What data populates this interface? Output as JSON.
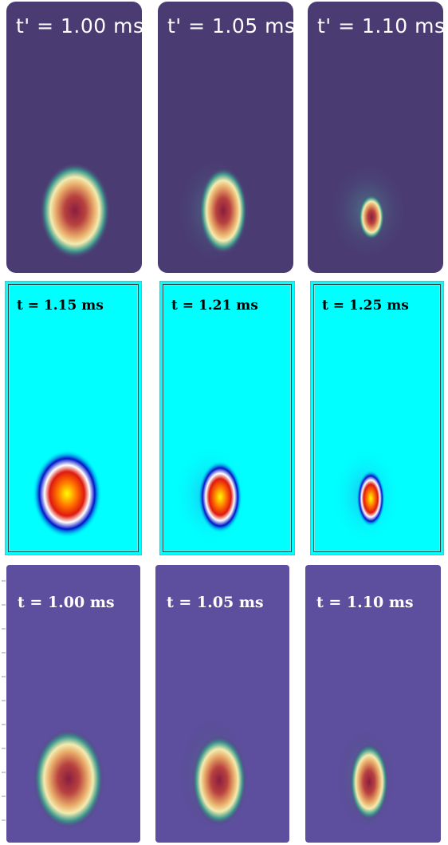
{
  "rows": [
    {
      "panels": [
        {
          "label": "t' = 1.00 ms"
        },
        {
          "label": "t' = 1.05 ms"
        },
        {
          "label": "t' = 1.10 ms"
        }
      ]
    },
    {
      "panels": [
        {
          "label": "t = 1.15 ms"
        },
        {
          "label": "t = 1.21 ms"
        },
        {
          "label": "t = 1.25 ms"
        }
      ]
    },
    {
      "panels": [
        {
          "label": "t = 1.00 ms"
        },
        {
          "label": "t = 1.05 ms"
        },
        {
          "label": "t = 1.10 ms"
        }
      ]
    }
  ],
  "colors": {
    "magma_background": "#4a3c73",
    "jet_background": "#00ffff",
    "magma_background_light": "#5d4f9d"
  }
}
